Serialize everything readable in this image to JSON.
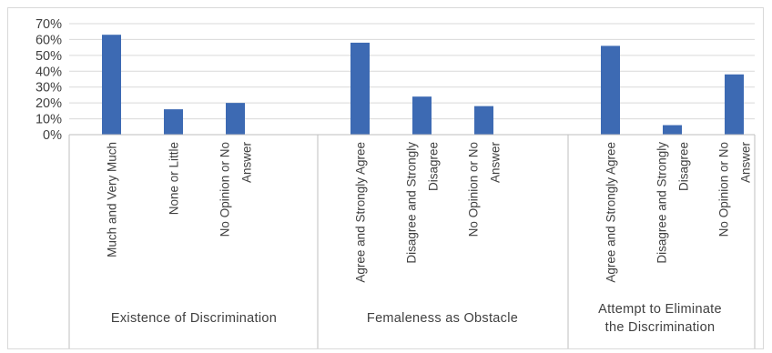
{
  "chart_data": {
    "type": "bar",
    "y_ticks": [
      "0%",
      "10%",
      "20%",
      "30%",
      "40%",
      "50%",
      "60%",
      "70%"
    ],
    "ylim": [
      0,
      70
    ],
    "grid": true,
    "legend": "none",
    "bar_color": "#3d6ab3",
    "groups": [
      {
        "name": "Existence of Discrimination",
        "name_lines": [
          "Existence of Discrimination"
        ],
        "categories": [
          {
            "lines": [
              "Much and Very Much"
            ],
            "value": 63
          },
          {
            "lines": [
              "None or Little"
            ],
            "value": 16
          },
          {
            "lines": [
              "No Opinion or No",
              "Answer"
            ],
            "value": 20
          }
        ]
      },
      {
        "name": "Femaleness as Obstacle",
        "name_lines": [
          "Femaleness as Obstacle"
        ],
        "categories": [
          {
            "lines": [
              "Agree and Strongly Agree"
            ],
            "value": 58
          },
          {
            "lines": [
              "Disagree and Strongly",
              "Disagree"
            ],
            "value": 24
          },
          {
            "lines": [
              "No Opinion or No",
              "Answer"
            ],
            "value": 18
          }
        ]
      },
      {
        "name": "Attempt to Eliminate the Discrimination",
        "name_lines": [
          "Attempt to Eliminate",
          "the Discrimination"
        ],
        "categories": [
          {
            "lines": [
              "Agree and Strongly Agree"
            ],
            "value": 56
          },
          {
            "lines": [
              "Disagree and Strongly",
              "Disagree"
            ],
            "value": 6
          },
          {
            "lines": [
              "No Opinion or No",
              "Answer"
            ],
            "value": 38
          }
        ]
      }
    ]
  }
}
